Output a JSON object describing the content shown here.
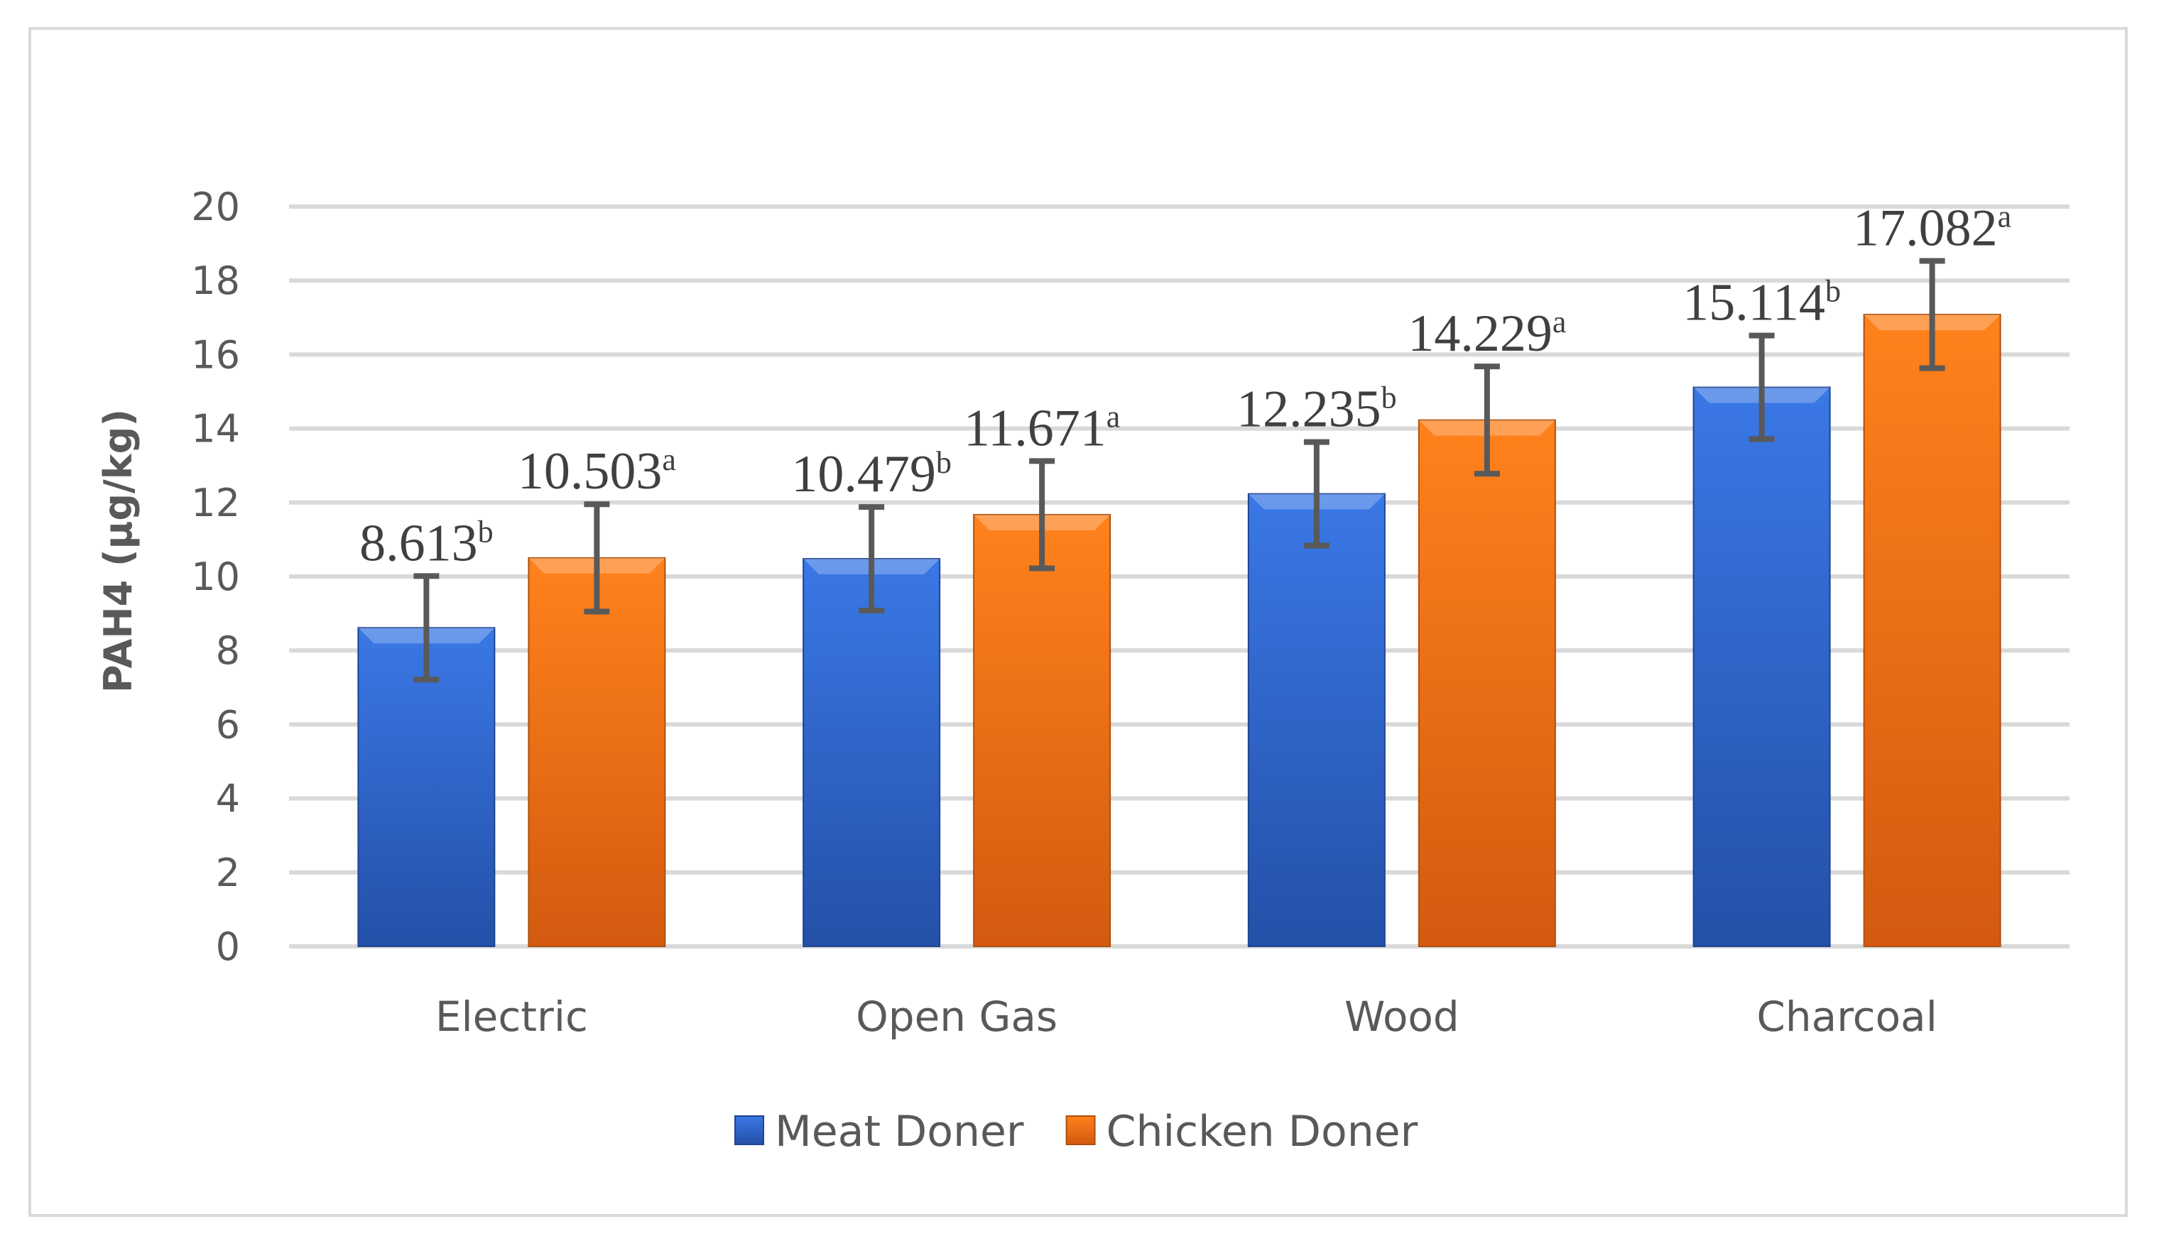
{
  "chart_data": {
    "type": "bar",
    "title": "",
    "xlabel": "",
    "ylabel": "PAH4 (µg/kg)",
    "ylim": [
      0,
      20
    ],
    "yticks": [
      0,
      2,
      4,
      6,
      8,
      10,
      12,
      14,
      16,
      18,
      20
    ],
    "grid": true,
    "legend_position": "bottom",
    "categories": [
      "Electric",
      "Open Gas",
      "Wood",
      "Charcoal"
    ],
    "series": [
      {
        "name": "Meat Doner",
        "color": "#3a70d6",
        "values": [
          8.613,
          10.479,
          12.235,
          15.114
        ],
        "letters": [
          "b",
          "b",
          "b",
          "b"
        ],
        "error": [
          1.4,
          1.4,
          1.4,
          1.4
        ]
      },
      {
        "name": "Chicken Doner",
        "color": "#f07818",
        "values": [
          10.503,
          11.671,
          14.229,
          17.082
        ],
        "letters": [
          "a",
          "a",
          "a",
          "a"
        ],
        "error": [
          1.45,
          1.45,
          1.45,
          1.45
        ]
      }
    ]
  }
}
